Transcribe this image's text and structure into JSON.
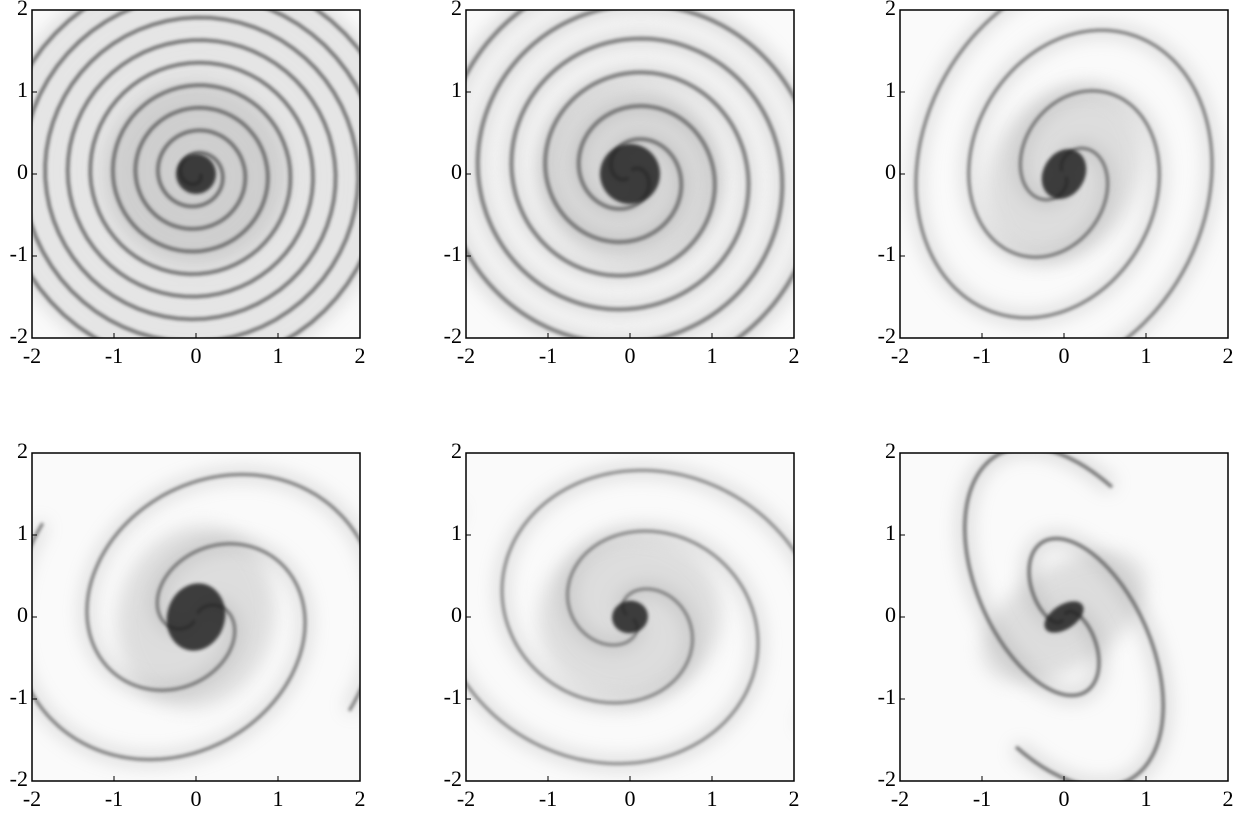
{
  "chart_data": [
    {
      "type": "image",
      "xlim": [
        -2,
        2
      ],
      "ylim": [
        -2,
        2
      ],
      "xticks": [
        -2,
        -1,
        0,
        1,
        2
      ],
      "yticks": [
        -2,
        -1,
        0,
        1,
        2
      ]
    },
    {
      "type": "image",
      "xlim": [
        -2,
        2
      ],
      "ylim": [
        -2,
        2
      ],
      "xticks": [
        -2,
        -1,
        0,
        1,
        2
      ],
      "yticks": [
        -2,
        -1,
        0,
        1,
        2
      ]
    },
    {
      "type": "image",
      "xlim": [
        -2,
        2
      ],
      "ylim": [
        -2,
        2
      ],
      "xticks": [
        -2,
        -1,
        0,
        1,
        2
      ],
      "yticks": [
        -2,
        -1,
        0,
        1,
        2
      ]
    },
    {
      "type": "image",
      "xlim": [
        -2,
        2
      ],
      "ylim": [
        -2,
        2
      ],
      "xticks": [
        -2,
        -1,
        0,
        1,
        2
      ],
      "yticks": [
        -2,
        -1,
        0,
        1,
        2
      ]
    },
    {
      "type": "image",
      "xlim": [
        -2,
        2
      ],
      "ylim": [
        -2,
        2
      ],
      "xticks": [
        -2,
        -1,
        0,
        1,
        2
      ],
      "yticks": [
        -2,
        -1,
        0,
        1,
        2
      ]
    },
    {
      "type": "image",
      "xlim": [
        -2,
        2
      ],
      "ylim": [
        -2,
        2
      ],
      "xticks": [
        -2,
        -1,
        0,
        1,
        2
      ],
      "yticks": [
        -2,
        -1,
        0,
        1,
        2
      ]
    }
  ]
}
